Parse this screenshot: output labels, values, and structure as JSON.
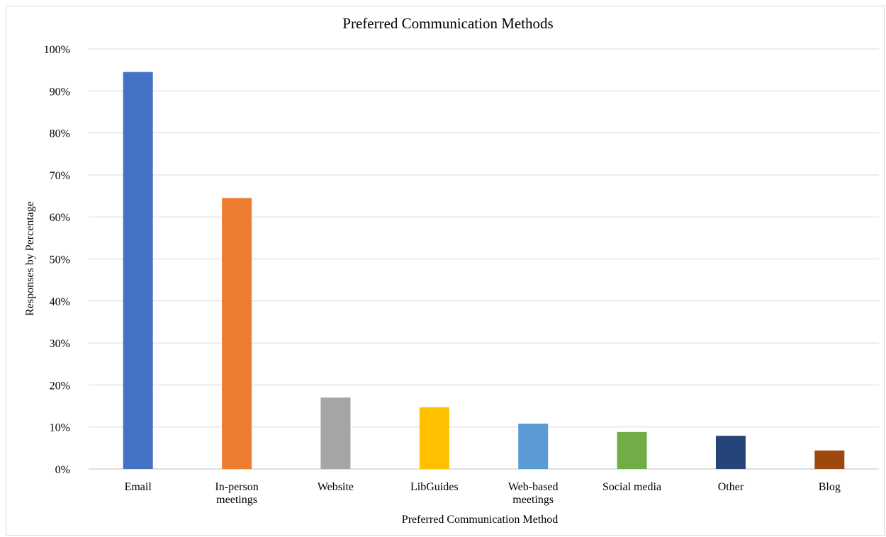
{
  "chart_data": {
    "type": "bar",
    "title": "Preferred Communication Methods",
    "xlabel": "Preferred Communication Method",
    "ylabel": "Responses by Percentage",
    "ylim": [
      0,
      100
    ],
    "y_ticks": [
      "0%",
      "10%",
      "20%",
      "30%",
      "40%",
      "50%",
      "60%",
      "70%",
      "80%",
      "90%",
      "100%"
    ],
    "grid": true,
    "legend": "none",
    "categories": [
      [
        "Email"
      ],
      [
        "In-person",
        "meetings"
      ],
      [
        "Website"
      ],
      [
        "LibGuides"
      ],
      [
        "Web-based",
        "meetings"
      ],
      [
        "Social media"
      ],
      [
        "Other"
      ],
      [
        "Blog"
      ]
    ],
    "values": [
      94.5,
      64.5,
      17,
      14.7,
      10.8,
      8.8,
      7.9,
      4.4
    ],
    "colors": [
      "#4472C4",
      "#ED7D31",
      "#A5A5A5",
      "#FFC000",
      "#5B9BD5",
      "#70AD47",
      "#264478",
      "#9E480E"
    ]
  }
}
